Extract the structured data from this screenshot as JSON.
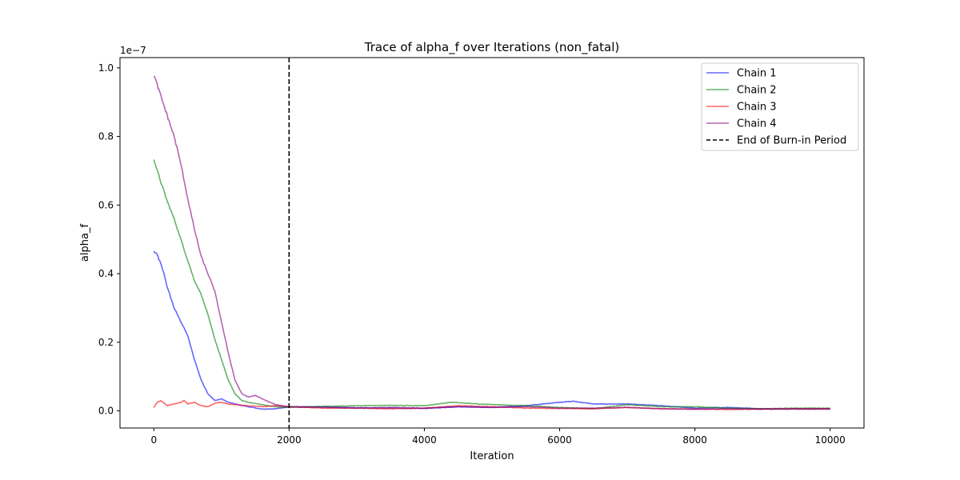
{
  "chart_data": {
    "type": "line",
    "title": "Trace of alpha_f over Iterations (non_fatal)",
    "xlabel": "Iteration",
    "ylabel": "alpha_f",
    "y_offset_label": "1e−7",
    "xlim": [
      -500,
      10500
    ],
    "ylim": [
      -0.05,
      1.03
    ],
    "xticks": [
      0,
      2000,
      4000,
      6000,
      8000,
      10000
    ],
    "xtick_labels": [
      "0",
      "2000",
      "4000",
      "6000",
      "8000",
      "10000"
    ],
    "yticks": [
      0.0,
      0.2,
      0.4,
      0.6,
      0.8,
      1.0
    ],
    "ytick_labels": [
      "0.0",
      "0.2",
      "0.4",
      "0.6",
      "0.8",
      "1.0"
    ],
    "grid": false,
    "legend_position": "top-right",
    "burn_in": {
      "x": 2000,
      "label": "End of Burn-in Period",
      "color": "#000000",
      "style": "dashed"
    },
    "series": [
      {
        "name": "Chain 1",
        "color": "#0000ff",
        "x": [
          0,
          50,
          100,
          150,
          200,
          250,
          300,
          400,
          500,
          600,
          700,
          800,
          900,
          1000,
          1100,
          1200,
          1400,
          1600,
          1800,
          2000,
          2500,
          3000,
          3500,
          4000,
          4500,
          5000,
          5500,
          6000,
          6200,
          6500,
          7000,
          7500,
          8000,
          8500,
          9000,
          9500,
          10000
        ],
        "y": [
          0.465,
          0.455,
          0.43,
          0.4,
          0.36,
          0.33,
          0.3,
          0.26,
          0.22,
          0.15,
          0.09,
          0.05,
          0.03,
          0.035,
          0.025,
          0.02,
          0.012,
          0.005,
          0.006,
          0.012,
          0.012,
          0.009,
          0.008,
          0.007,
          0.012,
          0.01,
          0.015,
          0.025,
          0.028,
          0.02,
          0.02,
          0.015,
          0.008,
          0.01,
          0.006,
          0.006,
          0.006
        ]
      },
      {
        "name": "Chain 2",
        "color": "#008000",
        "x": [
          0,
          50,
          100,
          200,
          300,
          400,
          500,
          600,
          700,
          800,
          900,
          1000,
          1100,
          1200,
          1300,
          1400,
          1600,
          1800,
          2000,
          2500,
          3000,
          3500,
          4000,
          4400,
          4800,
          5500,
          6000,
          6500,
          7000,
          7500,
          8000,
          8500,
          9000,
          9500,
          10000
        ],
        "y": [
          0.735,
          0.7,
          0.67,
          0.61,
          0.56,
          0.5,
          0.44,
          0.38,
          0.34,
          0.28,
          0.21,
          0.15,
          0.09,
          0.05,
          0.03,
          0.025,
          0.018,
          0.012,
          0.01,
          0.013,
          0.015,
          0.016,
          0.015,
          0.025,
          0.02,
          0.015,
          0.01,
          0.006,
          0.018,
          0.012,
          0.012,
          0.008,
          0.006,
          0.008,
          0.008
        ]
      },
      {
        "name": "Chain 3",
        "color": "#ff0000",
        "x": [
          0,
          50,
          100,
          200,
          300,
          400,
          450,
          500,
          600,
          700,
          800,
          900,
          1000,
          1100,
          1200,
          1400,
          1600,
          1800,
          2000,
          2500,
          3000,
          3500,
          4000,
          4500,
          5000,
          5500,
          6000,
          6500,
          7000,
          7500,
          8000,
          8500,
          9000,
          9500,
          10000
        ],
        "y": [
          0.01,
          0.025,
          0.03,
          0.015,
          0.02,
          0.025,
          0.03,
          0.02,
          0.025,
          0.015,
          0.012,
          0.022,
          0.025,
          0.02,
          0.018,
          0.015,
          0.012,
          0.015,
          0.012,
          0.008,
          0.008,
          0.006,
          0.008,
          0.015,
          0.012,
          0.008,
          0.007,
          0.006,
          0.01,
          0.006,
          0.005,
          0.004,
          0.005,
          0.006,
          0.006
        ]
      },
      {
        "name": "Chain 4",
        "color": "#800080",
        "x": [
          0,
          50,
          100,
          200,
          300,
          400,
          500,
          600,
          700,
          800,
          900,
          1000,
          1100,
          1200,
          1300,
          1400,
          1500,
          1600,
          1800,
          2000,
          2500,
          3000,
          3500,
          4000,
          4500,
          5000,
          5500,
          6000,
          6500,
          7000,
          7500,
          8000,
          8500,
          9000,
          9500,
          10000
        ],
        "y": [
          0.98,
          0.95,
          0.92,
          0.86,
          0.8,
          0.72,
          0.62,
          0.53,
          0.45,
          0.4,
          0.35,
          0.26,
          0.17,
          0.09,
          0.05,
          0.04,
          0.045,
          0.035,
          0.018,
          0.012,
          0.01,
          0.008,
          0.01,
          0.008,
          0.012,
          0.01,
          0.012,
          0.008,
          0.008,
          0.01,
          0.006,
          0.005,
          0.006,
          0.005,
          0.005,
          0.005
        ]
      }
    ]
  }
}
